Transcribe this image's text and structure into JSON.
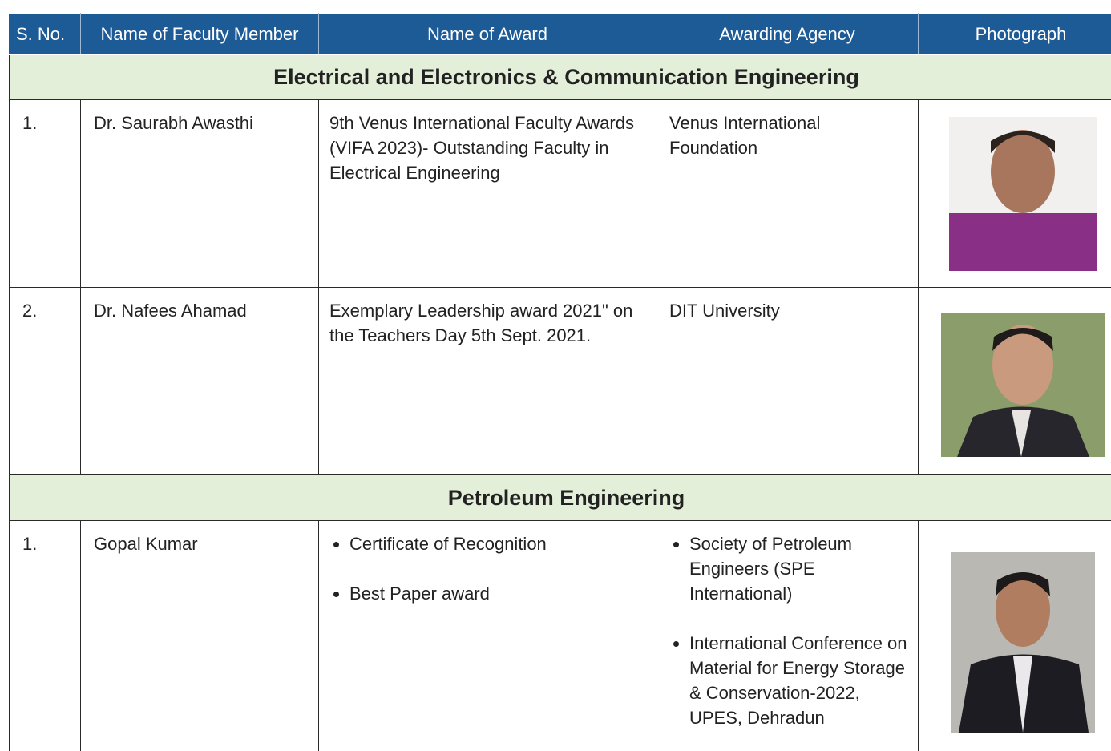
{
  "table": {
    "headers": [
      "S. No.",
      "Name of Faculty Member",
      "Name of Award",
      "Awarding Agency",
      "Photograph"
    ],
    "sections": [
      {
        "title": "Electrical and Electronics & Communication Engineering",
        "rows": [
          {
            "sno": "1.",
            "name": "Dr. Saurabh Awasthi",
            "award": [
              "9th Venus International Faculty Awards (VIFA 2023)- Outstanding Faculty in Electrical Engineering"
            ],
            "agency": [
              "Venus International Foundation"
            ]
          },
          {
            "sno": "2.",
            "name": "Dr. Nafees Ahamad",
            "award": [
              "Exemplary Leadership award 2021\" on the Teachers Day 5th  Sept. 2021."
            ],
            "agency": [
              "DIT University"
            ]
          }
        ]
      },
      {
        "title": "Petroleum Engineering",
        "rows": [
          {
            "sno": "1.",
            "name": "Gopal Kumar",
            "award_items": [
              "Certificate of Recognition",
              "Best Paper award"
            ],
            "agency_items": [
              "Society of Petroleum Engineers (SPE International)",
              "International Conference on Material for Energy Storage & Conservation-2022, UPES, Dehradun"
            ]
          }
        ]
      }
    ]
  }
}
